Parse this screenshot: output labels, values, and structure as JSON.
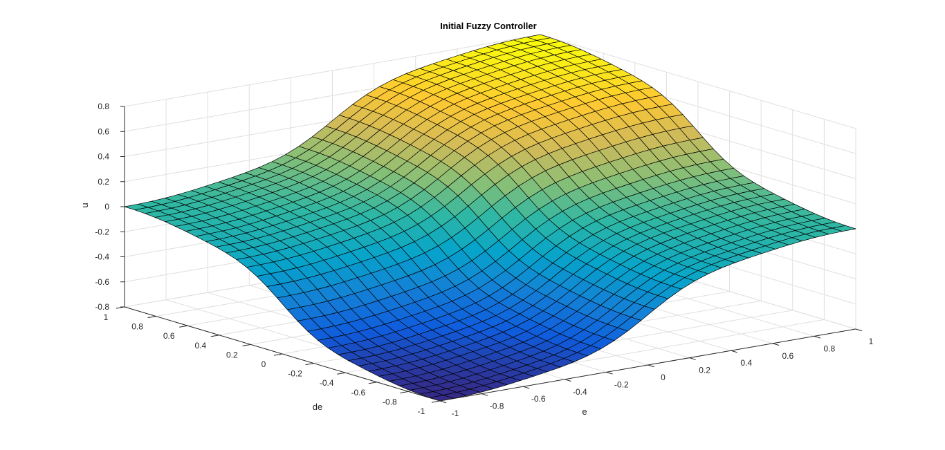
{
  "chart_data": {
    "type": "surface",
    "title": "Initial Fuzzy Controller",
    "xlabel": "e",
    "ylabel": "de",
    "zlabel": "u",
    "xlim": [
      -1,
      1
    ],
    "ylim": [
      -1,
      1
    ],
    "zlim": [
      -0.8,
      0.8
    ],
    "x_ticks": [
      "-1",
      "-0.8",
      "-0.6",
      "-0.4",
      "-0.2",
      "0",
      "0.2",
      "0.4",
      "0.6",
      "0.8",
      "1"
    ],
    "y_ticks": [
      "-1",
      "-0.8",
      "-0.6",
      "-0.4",
      "-0.2",
      "0",
      "0.2",
      "0.4",
      "0.6",
      "0.8",
      "1"
    ],
    "z_ticks": [
      "-0.8",
      "-0.6",
      "-0.4",
      "-0.2",
      "0",
      "0.2",
      "0.4",
      "0.6",
      "0.8"
    ],
    "grid": true,
    "colormap": "parula",
    "colormap_stops": [
      "#352a87",
      "#0f5cdd",
      "#1481d6",
      "#06a4ca",
      "#2eb7a4",
      "#87bf77",
      "#d1bb59",
      "#fec832",
      "#f9fb0e"
    ],
    "mesh_resolution": 31,
    "corner_values": {
      "e=-1,de=-1": -0.8,
      "e=1,de=1": 0.8,
      "e=-1,de=1": 0.0,
      "e=1,de=-1": 0.0
    },
    "surface": "u ≈ 0.4·(tanh-shaped e + tanh-shaped de), saturating at ±0.8"
  }
}
